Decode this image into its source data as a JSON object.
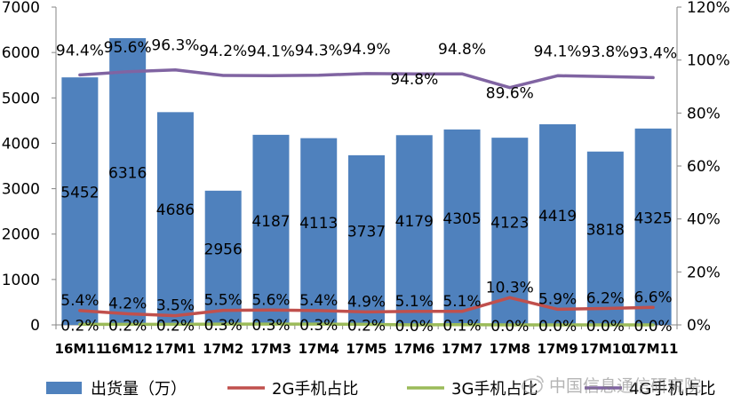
{
  "chart_data": {
    "type": "bar",
    "categories": [
      "16M11",
      "16M12",
      "17M1",
      "17M2",
      "17M3",
      "17M4",
      "17M5",
      "17M6",
      "17M7",
      "17M8",
      "17M9",
      "17M10",
      "17M11"
    ],
    "series": [
      {
        "name": "出货量（万）",
        "type": "bar",
        "axis": "left",
        "color": "#4F81BD",
        "values": [
          5452,
          6316,
          4686,
          2956,
          4187,
          4113,
          3737,
          4179,
          4305,
          4123,
          4419,
          3818,
          4325
        ],
        "labels": [
          "5452",
          "6316",
          "4686",
          "2956",
          "4187",
          "4113",
          "3737",
          "4179",
          "4305",
          "4123",
          "4419",
          "3818",
          "4325"
        ]
      },
      {
        "name": "2G手机占比",
        "type": "line",
        "axis": "right",
        "color": "#C0504D",
        "values": [
          5.4,
          4.2,
          3.5,
          5.5,
          5.6,
          5.4,
          4.9,
          5.1,
          5.1,
          10.3,
          5.9,
          6.2,
          6.6
        ],
        "labels": [
          "5.4%",
          "4.2%",
          "3.5%",
          "5.5%",
          "5.6%",
          "5.4%",
          "4.9%",
          "5.1%",
          "5.1%",
          "10.3%",
          "5.9%",
          "6.2%",
          "6.6%"
        ]
      },
      {
        "name": "3G手机占比",
        "type": "line",
        "axis": "right",
        "color": "#9BBB59",
        "values": [
          0.2,
          0.2,
          0.2,
          0.3,
          0.3,
          0.3,
          0.2,
          0.0,
          0.1,
          0.0,
          0.0,
          0.0,
          0.0
        ],
        "labels": [
          "0.2%",
          "0.2%",
          "0.2%",
          "0.3%",
          "0.3%",
          "0.3%",
          "0.2%",
          "0.0%",
          "0.1%",
          "0.0%",
          "0.0%",
          "0.0%",
          "0.0%"
        ]
      },
      {
        "name": "4G手机占比",
        "type": "line",
        "axis": "right",
        "color": "#8064A2",
        "values": [
          94.4,
          95.6,
          96.3,
          94.2,
          94.1,
          94.3,
          94.9,
          94.8,
          94.8,
          89.6,
          94.1,
          93.8,
          93.4
        ],
        "labels": [
          "94.4%",
          "95.6%",
          "96.3%",
          "94.2%",
          "94.1%",
          "94.3%",
          "94.9%",
          "94.8%",
          "94.8%",
          "89.6%",
          "94.1%",
          "93.8%",
          "93.4%"
        ]
      }
    ],
    "y_left": {
      "min": 0,
      "max": 7000,
      "step": 1000,
      "ticks": [
        "0",
        "1000",
        "2000",
        "3000",
        "4000",
        "5000",
        "6000",
        "7000"
      ]
    },
    "y_right": {
      "min": 0,
      "max": 120,
      "step": 20,
      "ticks": [
        "0%",
        "20%",
        "40%",
        "60%",
        "80%",
        "100%",
        "120%"
      ]
    },
    "legend_position": "bottom",
    "grid": false
  },
  "watermark": {
    "text": "中国信息通信研究院",
    "icon": "weibo-icon"
  }
}
